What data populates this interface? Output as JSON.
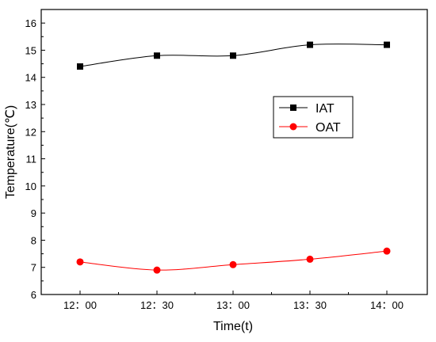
{
  "chart_data": {
    "type": "line",
    "title": "",
    "xlabel": "Time(t)",
    "ylabel": "Temperature(℃)",
    "categories": [
      "12：00",
      "12：30",
      "13：00",
      "13：30",
      "14：00"
    ],
    "ylim": [
      6,
      16.5
    ],
    "yticks": [
      6,
      7,
      8,
      9,
      10,
      11,
      12,
      13,
      14,
      15,
      16
    ],
    "grid": false,
    "legend_position": "right",
    "series": [
      {
        "name": "IAT",
        "values": [
          14.4,
          14.8,
          14.8,
          15.2,
          15.2
        ],
        "color": "#000000",
        "marker": "square",
        "smooth": true
      },
      {
        "name": "OAT",
        "values": [
          7.2,
          6.9,
          7.1,
          7.3,
          7.6
        ],
        "color": "#ff0000",
        "marker": "circle",
        "smooth": true
      }
    ]
  }
}
